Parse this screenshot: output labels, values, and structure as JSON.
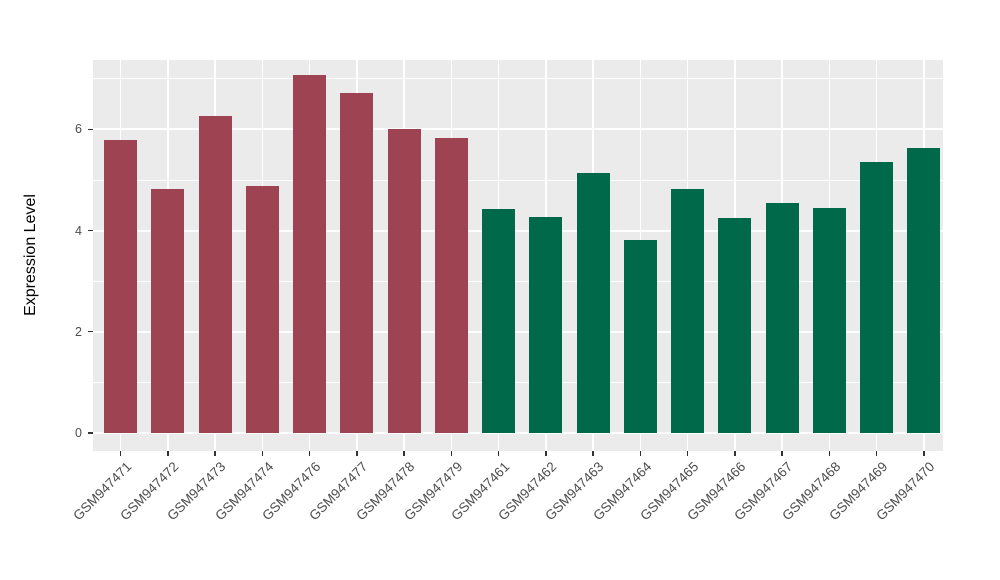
{
  "figure": {
    "background_color": "#FFFFFF",
    "panel_background_color": "#EBEBEB",
    "gridline_color": "#FFFFFF",
    "tick_mark_color": "#333333",
    "tick_label_color": "#4D4D4D",
    "axis_title_color": "#000000"
  },
  "chart_data": {
    "type": "bar",
    "title": "",
    "xlabel": "",
    "ylabel": "Expression Level",
    "ylim": [
      -0.36,
      7.37
    ],
    "yticks_major": [
      0,
      2,
      4,
      6
    ],
    "yticks_major_labels": [
      "0",
      "2",
      "4",
      "6"
    ],
    "yticks_minor": [
      1,
      3,
      5,
      7
    ],
    "grid": "on",
    "legend_position": "none",
    "categories": [
      "GSM947471",
      "GSM947472",
      "GSM947473",
      "GSM947474",
      "GSM947476",
      "GSM947477",
      "GSM947478",
      "GSM947479",
      "GSM947461",
      "GSM947462",
      "GSM947463",
      "GSM947464",
      "GSM947465",
      "GSM947466",
      "GSM947467",
      "GSM947468",
      "GSM947469",
      "GSM947470"
    ],
    "values": [
      5.79,
      4.82,
      6.27,
      4.89,
      7.08,
      6.71,
      6.01,
      5.83,
      4.42,
      4.26,
      5.14,
      3.81,
      4.82,
      4.24,
      4.55,
      4.45,
      5.35,
      5.63
    ],
    "group_of_bar": [
      0,
      0,
      0,
      0,
      0,
      0,
      0,
      0,
      1,
      1,
      1,
      1,
      1,
      1,
      1,
      1,
      1,
      1
    ],
    "group_colors": [
      "#9D4352",
      "#006949"
    ]
  }
}
